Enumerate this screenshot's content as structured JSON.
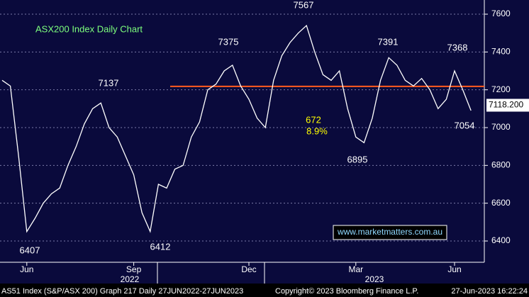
{
  "chart_data": {
    "type": "line",
    "title": "ASX200 Index Daily Chart",
    "categories": [
      null,
      null,
      null,
      "Jun",
      null,
      null,
      null,
      null,
      null,
      null,
      null,
      null,
      null,
      null,
      null,
      null,
      "Sep",
      null,
      null,
      null,
      null,
      null,
      null,
      null,
      null,
      null,
      null,
      null,
      null,
      null,
      "Dec",
      null,
      null,
      null,
      null,
      null,
      null,
      null,
      null,
      null,
      null,
      null,
      null,
      "Mar",
      null,
      null,
      null,
      null,
      null,
      null,
      null,
      null,
      null,
      null,
      null,
      "Jun",
      null,
      null
    ],
    "series": [
      {
        "name": "AS51 Index",
        "color": "#ffffff",
        "values": [
          7250,
          7220,
          6850,
          6450,
          6520,
          6600,
          6650,
          6680,
          6800,
          6900,
          7020,
          7100,
          7130,
          7000,
          6950,
          6850,
          6750,
          6550,
          6450,
          6700,
          6680,
          6780,
          6800,
          6950,
          7030,
          7200,
          7230,
          7300,
          7330,
          7220,
          7150,
          7050,
          7000,
          7250,
          7380,
          7450,
          7500,
          7540,
          7400,
          7280,
          7250,
          7300,
          7100,
          6950,
          6920,
          7050,
          7250,
          7370,
          7330,
          7250,
          7220,
          7260,
          7200,
          7100,
          7150,
          7300,
          7200,
          7090
        ]
      }
    ],
    "years": [
      "2022",
      "2023"
    ],
    "ylim": [
      6287.5,
      7675
    ],
    "yticks": [
      6400,
      6600,
      6800,
      7000,
      7200,
      7400,
      7600
    ],
    "grid": true,
    "hline": {
      "value": 7218,
      "color": "#ff5a1e"
    },
    "last_price": {
      "value": 7118.2,
      "label": "7118.200"
    },
    "annotations": [
      "7567",
      "7375",
      "7391",
      "7368",
      "7137",
      "6407",
      "6412",
      "6895",
      "7054",
      "672",
      "8.9%"
    ],
    "watermark": "www.marketmatters.com.au",
    "footer": {
      "left": "AS51 Index (S&P/ASX 200) Graph 217  Daily 27JUN2022-27JUN2023",
      "center": "Copyright© 2023 Bloomberg Finance L.P.",
      "right": "27-Jun-2023 16:22:24"
    }
  }
}
